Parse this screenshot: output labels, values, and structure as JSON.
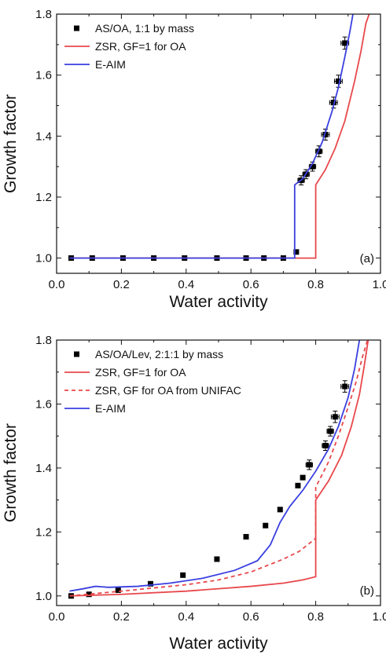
{
  "chart_data": [
    {
      "type": "scatter",
      "panel_label": "(a)",
      "xlabel": "Water activity",
      "ylabel": "Growth factor",
      "xlim": [
        0.0,
        1.0
      ],
      "ylim": [
        0.95,
        1.8
      ],
      "x_ticks": [
        0.0,
        0.2,
        0.4,
        0.6,
        0.8,
        1.0
      ],
      "x_tick_labels": [
        "0.0",
        "0.2",
        "0.4",
        "0.6",
        "0.8",
        "1.0"
      ],
      "y_ticks": [
        1.0,
        1.2,
        1.4,
        1.6,
        1.8
      ],
      "y_tick_labels": [
        "1.0",
        "1.2",
        "1.4",
        "1.6",
        "1.8"
      ],
      "legend_position": "top-left",
      "series": [
        {
          "name": "AS/OA, 1:1 by mass",
          "kind": "points",
          "color": "#000000",
          "x": [
            0.045,
            0.11,
            0.205,
            0.3,
            0.395,
            0.495,
            0.585,
            0.64,
            0.7,
            0.74,
            0.755,
            0.77,
            0.79,
            0.81,
            0.83,
            0.855,
            0.87,
            0.89
          ],
          "y": [
            1.0,
            1.0,
            1.0,
            1.0,
            1.0,
            1.0,
            1.0,
            1.0,
            1.0,
            1.02,
            1.255,
            1.275,
            1.3,
            1.35,
            1.405,
            1.51,
            1.58,
            1.705
          ],
          "xerr": [
            0.0,
            0.0,
            0.0,
            0.0,
            0.0,
            0.0,
            0.0,
            0.0,
            0.0,
            0.0,
            0.01,
            0.01,
            0.01,
            0.01,
            0.012,
            0.012,
            0.012,
            0.012
          ],
          "yerr": [
            0.0,
            0.0,
            0.0,
            0.0,
            0.0,
            0.0,
            0.0,
            0.0,
            0.0,
            0.0,
            0.015,
            0.015,
            0.015,
            0.018,
            0.018,
            0.018,
            0.02,
            0.02
          ]
        },
        {
          "name": "ZSR, GF=1 for OA",
          "kind": "line",
          "color": "#e8484b",
          "dash": "solid",
          "x": [
            0.04,
            0.8,
            0.8,
            0.83,
            0.86,
            0.89,
            0.92,
            0.94,
            0.955,
            0.965
          ],
          "y": [
            1.0,
            1.0,
            1.24,
            1.29,
            1.36,
            1.45,
            1.58,
            1.68,
            1.77,
            1.8
          ]
        },
        {
          "name": "E-AIM",
          "kind": "line",
          "color": "#3a3fe0",
          "dash": "solid",
          "x": [
            0.04,
            0.735,
            0.735,
            0.76,
            0.79,
            0.82,
            0.85,
            0.87,
            0.89,
            0.905,
            0.915
          ],
          "y": [
            1.0,
            1.0,
            1.24,
            1.26,
            1.31,
            1.38,
            1.48,
            1.56,
            1.66,
            1.74,
            1.8
          ]
        }
      ]
    },
    {
      "type": "scatter",
      "panel_label": "(b)",
      "xlabel": "Water activity",
      "ylabel": "Growth factor",
      "xlim": [
        0.0,
        1.0
      ],
      "ylim": [
        0.97,
        1.8
      ],
      "x_ticks": [
        0.0,
        0.2,
        0.4,
        0.6,
        0.8,
        1.0
      ],
      "x_tick_labels": [
        "0.0",
        "0.2",
        "0.4",
        "0.6",
        "0.8",
        "1.0"
      ],
      "y_ticks": [
        1.0,
        1.2,
        1.4,
        1.6,
        1.8
      ],
      "y_tick_labels": [
        "1.0",
        "1.2",
        "1.4",
        "1.6",
        "1.8"
      ],
      "legend_position": "top-left",
      "series": [
        {
          "name": "AS/OA/Lev, 2:1:1 by mass",
          "kind": "points",
          "color": "#000000",
          "x": [
            0.045,
            0.1,
            0.19,
            0.29,
            0.39,
            0.495,
            0.585,
            0.645,
            0.69,
            0.745,
            0.76,
            0.78,
            0.83,
            0.845,
            0.86,
            0.89
          ],
          "y": [
            1.0,
            1.005,
            1.018,
            1.038,
            1.065,
            1.115,
            1.185,
            1.22,
            1.27,
            1.345,
            1.37,
            1.41,
            1.47,
            1.515,
            1.56,
            1.655
          ],
          "xerr": [
            0.0,
            0.0,
            0.0,
            0.0,
            0.0,
            0.0,
            0.0,
            0.0,
            0.0,
            0.0,
            0.0,
            0.01,
            0.01,
            0.01,
            0.012,
            0.012
          ],
          "yerr": [
            0.0,
            0.0,
            0.0,
            0.0,
            0.0,
            0.0,
            0.0,
            0.0,
            0.0,
            0.0,
            0.0,
            0.015,
            0.015,
            0.015,
            0.018,
            0.018
          ]
        },
        {
          "name": "ZSR, GF=1 for OA",
          "kind": "line",
          "color": "#e8484b",
          "dash": "solid",
          "x": [
            0.04,
            0.2,
            0.4,
            0.6,
            0.7,
            0.76,
            0.8,
            0.8,
            0.84,
            0.88,
            0.91,
            0.935,
            0.95,
            0.962
          ],
          "y": [
            1.0,
            1.005,
            1.015,
            1.03,
            1.04,
            1.05,
            1.06,
            1.3,
            1.36,
            1.44,
            1.53,
            1.63,
            1.72,
            1.8
          ]
        },
        {
          "name": "ZSR, GF for OA from UNIFAC",
          "kind": "line",
          "color": "#e8484b",
          "dash": "dashed",
          "x": [
            0.04,
            0.2,
            0.4,
            0.5,
            0.6,
            0.7,
            0.75,
            0.8,
            0.8,
            0.84,
            0.87,
            0.9,
            0.925,
            0.945,
            0.96
          ],
          "y": [
            1.0,
            1.015,
            1.035,
            1.05,
            1.075,
            1.115,
            1.14,
            1.18,
            1.34,
            1.42,
            1.5,
            1.59,
            1.67,
            1.75,
            1.8
          ]
        },
        {
          "name": "E-AIM",
          "kind": "line",
          "color": "#3a3fe0",
          "dash": "solid",
          "x": [
            0.04,
            0.08,
            0.12,
            0.16,
            0.25,
            0.35,
            0.45,
            0.55,
            0.62,
            0.66,
            0.69,
            0.72,
            0.76,
            0.8,
            0.84,
            0.87,
            0.9,
            0.92,
            0.935
          ],
          "y": [
            1.015,
            1.022,
            1.03,
            1.027,
            1.03,
            1.04,
            1.055,
            1.08,
            1.11,
            1.16,
            1.23,
            1.28,
            1.33,
            1.39,
            1.46,
            1.53,
            1.62,
            1.71,
            1.8
          ]
        }
      ]
    }
  ]
}
